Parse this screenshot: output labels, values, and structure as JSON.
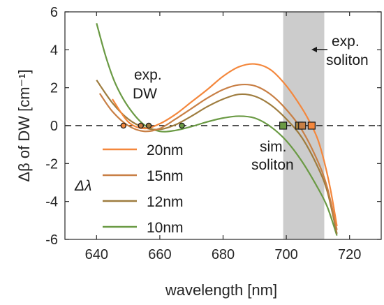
{
  "chart_data": {
    "type": "line",
    "xlabel": "wavelength [nm]",
    "ylabel": "Δβ of DW [cm⁻¹]",
    "xlim": [
      630,
      730
    ],
    "ylim": [
      -6,
      6
    ],
    "xticks": [
      "640",
      "660",
      "680",
      "700",
      "720"
    ],
    "yticks": [
      "6",
      "4",
      "2",
      "0",
      "-2",
      "-4",
      "-6"
    ],
    "shaded_region": {
      "x_from": 699,
      "x_to": 712,
      "color": "#cccccc"
    },
    "zero_line": {
      "y": 0,
      "style": "dashed"
    },
    "legend": {
      "title": "Δλ",
      "placement": "lower-left"
    },
    "series": [
      {
        "name": "20nm",
        "color": "#f4873c",
        "x": [
          645,
          650,
          655,
          660,
          665,
          670,
          675,
          680,
          685,
          690,
          695,
          700,
          705,
          708,
          710,
          712,
          714,
          716
        ],
        "y": [
          1.4,
          0.2,
          -0.15,
          0.1,
          0.6,
          1.25,
          1.9,
          2.6,
          3.1,
          3.25,
          2.95,
          2.1,
          0.9,
          0.0,
          -0.75,
          -1.9,
          -3.4,
          -5.3
        ],
        "dw_marker": [
          648.5,
          0
        ],
        "soliton_marker": [
          708,
          0
        ]
      },
      {
        "name": "15nm",
        "color": "#c87f45",
        "x": [
          641,
          645,
          650,
          655,
          660,
          665,
          670,
          675,
          680,
          685,
          690,
          695,
          700,
          705,
          710,
          713,
          716
        ],
        "y": [
          1.7,
          0.75,
          0.0,
          -0.3,
          -0.15,
          0.35,
          0.9,
          1.45,
          1.9,
          2.15,
          2.1,
          1.65,
          0.85,
          -0.25,
          -1.9,
          -3.3,
          -5.5
        ],
        "dw_marker": [
          654,
          0
        ],
        "soliton_marker": [
          705,
          0
        ]
      },
      {
        "name": "12nm",
        "color": "#9e7c3e",
        "x": [
          640,
          645,
          650,
          655,
          660,
          665,
          670,
          675,
          680,
          685,
          690,
          695,
          700,
          705,
          710,
          713,
          716
        ],
        "y": [
          2.4,
          1.2,
          0.35,
          -0.1,
          -0.2,
          0.05,
          0.5,
          1.0,
          1.4,
          1.65,
          1.55,
          1.1,
          0.35,
          -0.65,
          -2.2,
          -3.5,
          -5.7
        ],
        "dw_marker": [
          656.5,
          0
        ],
        "soliton_marker": [
          704,
          0
        ]
      },
      {
        "name": "10nm",
        "color": "#6a9a44",
        "x": [
          640,
          643,
          646,
          650,
          655,
          660,
          665,
          670,
          675,
          680,
          685,
          690,
          695,
          700,
          705,
          710,
          713,
          716
        ],
        "y": [
          5.4,
          3.6,
          2.2,
          1.0,
          0.05,
          -0.3,
          -0.25,
          -0.05,
          0.2,
          0.4,
          0.5,
          0.4,
          -0.05,
          -0.8,
          -1.9,
          -3.3,
          -4.3,
          -5.8
        ],
        "dw_marker": [
          667,
          0
        ],
        "soliton_marker": [
          699,
          0
        ]
      }
    ],
    "annotations": {
      "exp_dw": [
        "exp.",
        "DW"
      ],
      "sim_soliton": [
        "sim.",
        "soliton"
      ],
      "exp_soliton": [
        "exp.",
        "soliton"
      ]
    }
  }
}
